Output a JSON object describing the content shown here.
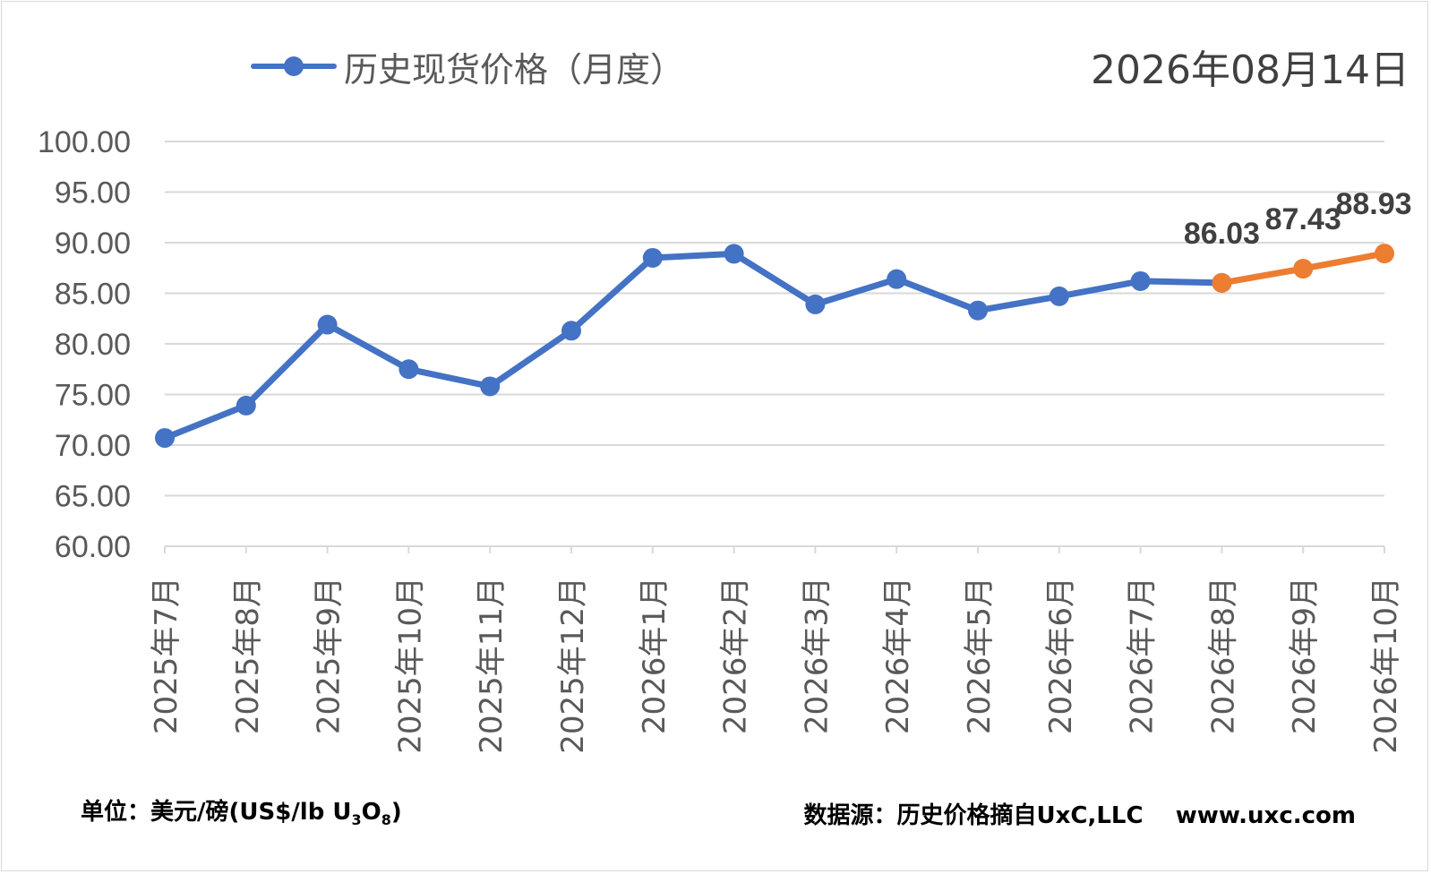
{
  "date_stamp": "2026年08月14日",
  "legend": {
    "label": "历史现货价格（月度）"
  },
  "footer": {
    "unit_prefix": "单位：美元/磅(US$/lb U",
    "unit_sub1": "3",
    "unit_mid": "O",
    "unit_sub2": "8",
    "unit_suffix": ")",
    "source": "数据源：历史价格摘自UxC,LLC    www.uxc.com"
  },
  "colors": {
    "historical": "#4472c4",
    "forecast": "#ed7d31",
    "grid": "#d9d9d9",
    "axis_text": "#595959"
  },
  "chart_data": {
    "type": "line",
    "categories": [
      "2025年7月",
      "2025年8月",
      "2025年9月",
      "2025年10月",
      "2025年11月",
      "2025年12月",
      "2026年1月",
      "2026年2月",
      "2026年3月",
      "2026年4月",
      "2026年5月",
      "2026年6月",
      "2026年7月",
      "2026年8月",
      "2026年9月",
      "2026年10月"
    ],
    "series": [
      {
        "name": "历史现货价格（月度）",
        "color": "#4472c4",
        "values": [
          70.7,
          73.9,
          81.9,
          77.5,
          75.8,
          81.3,
          88.5,
          88.9,
          83.9,
          86.4,
          83.3,
          84.7,
          86.2,
          86.03,
          null,
          null
        ]
      },
      {
        "color": "#ed7d31",
        "values": [
          null,
          null,
          null,
          null,
          null,
          null,
          null,
          null,
          null,
          null,
          null,
          null,
          null,
          86.03,
          87.43,
          88.93
        ],
        "data_labels": [
          "",
          "",
          "",
          "",
          "",
          "",
          "",
          "",
          "",
          "",
          "",
          "",
          "",
          "86.03",
          "87.43",
          "88.93"
        ]
      }
    ],
    "y_ticks": [
      "60.00",
      "65.00",
      "70.00",
      "75.00",
      "80.00",
      "85.00",
      "90.00",
      "95.00",
      "100.00"
    ],
    "ylim": [
      60,
      100
    ],
    "grid": true,
    "legend_position": "top-left",
    "title": "",
    "xlabel": "",
    "ylabel": ""
  }
}
